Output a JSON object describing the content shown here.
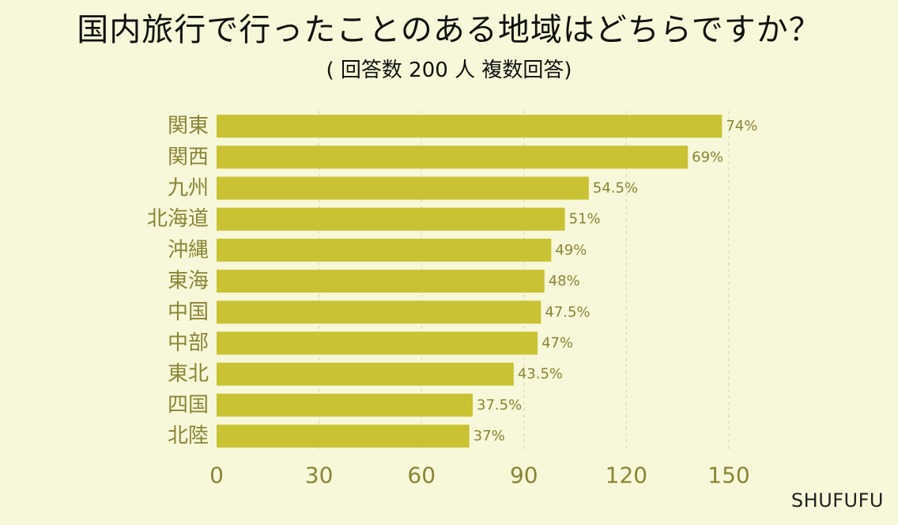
{
  "header": {
    "title": "国内旅行で行ったことのある地域はどちらですか？",
    "subtitle": "( 回答数 200 人  複数回答)"
  },
  "footer": {
    "source": "SHUFUFU"
  },
  "colors": {
    "background": "#f7f7d9",
    "bar": "#c9c233",
    "axis_text": "#8a8535",
    "grid": "#d9d7b8"
  },
  "chart_data": {
    "type": "bar",
    "orientation": "horizontal",
    "categories": [
      "関東",
      "関西",
      "九州",
      "北海道",
      "沖縄",
      "東海",
      "中国",
      "中部",
      "東北",
      "四国",
      "北陸"
    ],
    "values": [
      148,
      138,
      109,
      102,
      98,
      96,
      95,
      94,
      87,
      75,
      74
    ],
    "data_labels": [
      "74%",
      "69%",
      "54.5%",
      "51%",
      "49%",
      "48%",
      "47.5%",
      "47%",
      "43.5%",
      "37.5%",
      "37%"
    ],
    "xlim": [
      0,
      150
    ],
    "xticks": [
      0,
      30,
      60,
      90,
      120,
      150
    ],
    "grid": true
  }
}
